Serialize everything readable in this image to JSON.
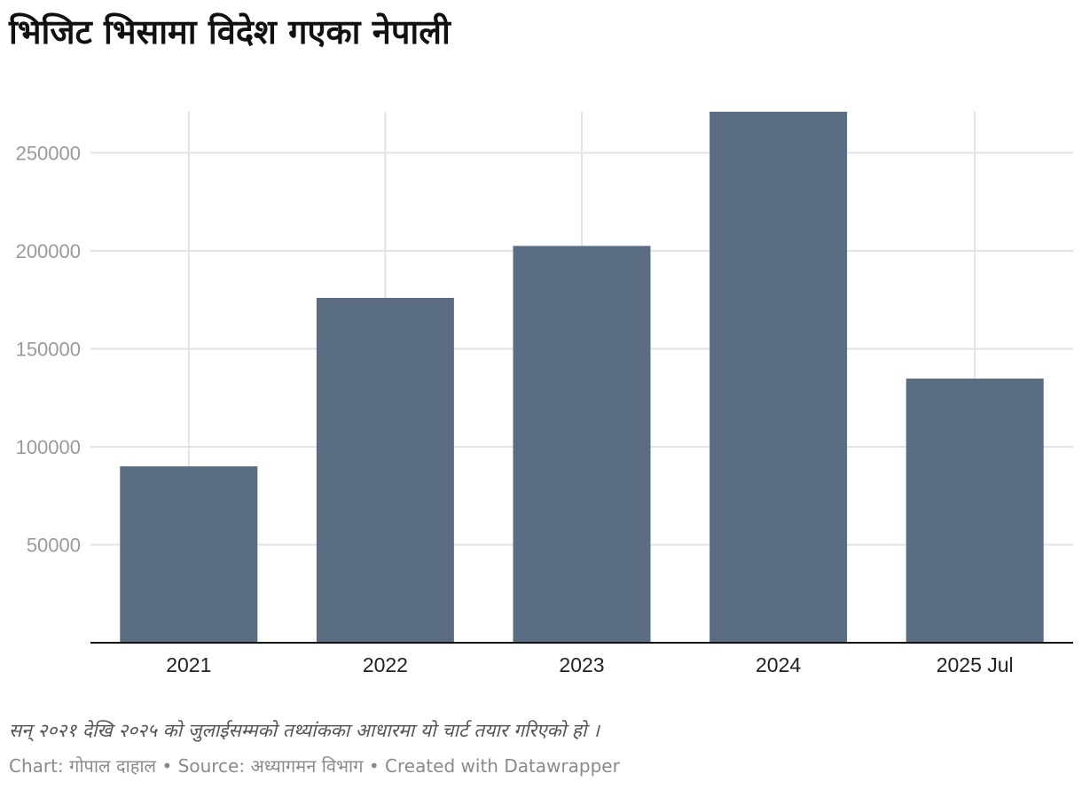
{
  "chart_data": {
    "type": "bar",
    "title": "भिजिट भिसामा विदेश गएका नेपाली",
    "categories": [
      "2021",
      "2022",
      "2023",
      "2024",
      "2025 Jul"
    ],
    "values": [
      90000,
      176000,
      202500,
      271000,
      134800
    ],
    "y_ticks": [
      50000,
      100000,
      150000,
      200000,
      250000
    ],
    "ylim": [
      0,
      271000
    ],
    "grid": true,
    "bar_color": "#5b6d83",
    "xlabel": "",
    "ylabel": ""
  },
  "notes": "सन् २०२१ देखि २०२५ को जुलाईसम्मको तथ्यांकका आधारमा यो चार्ट तयार गरिएको हो ।",
  "footer": {
    "chart_label": "Chart:",
    "author": "गोपाल दाहाल",
    "source_label": "Source:",
    "source": "अध्यागमन विभाग",
    "created_with": "Created with Datawrapper",
    "separator": "•"
  }
}
